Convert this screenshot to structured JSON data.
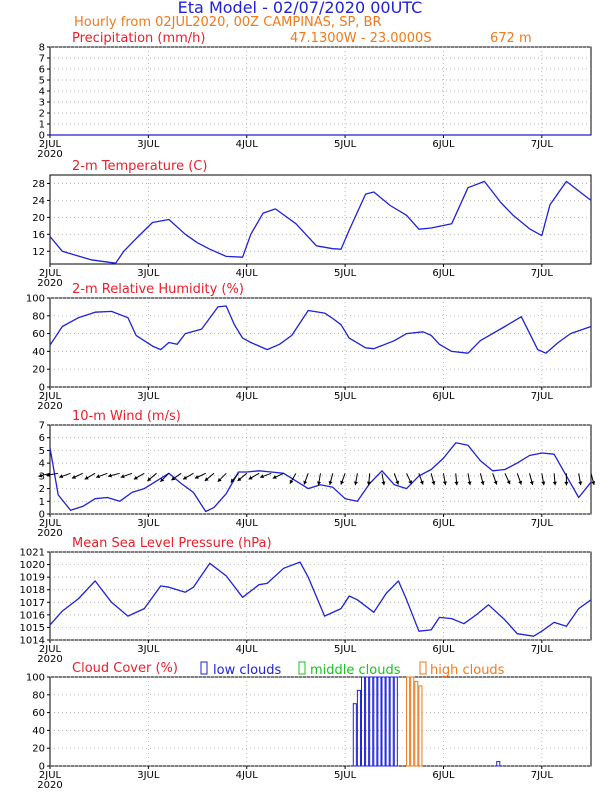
{
  "header": {
    "title": "Eta Model - 02/07/2020 00UTC",
    "subtitle": "Hourly from 02JUL2020, 00Z  CAMPINAS, SP, BR",
    "coords": "47.1300W - 23.0000S",
    "elevation": "672  m"
  },
  "time_axis": {
    "day_labels": [
      "2JUL",
      "3JUL",
      "4JUL",
      "5JUL",
      "6JUL",
      "7JUL"
    ],
    "year_label": "2020"
  },
  "colors": {
    "series": "#1f22d8",
    "panel_title": "#e8212a",
    "header": "#f07a1a",
    "low_clouds": "#1f22d8",
    "middle_clouds": "#18c41e",
    "high_clouds": "#f07a1a",
    "wind_barb": "#000000"
  },
  "chart_data": [
    {
      "id": "precip",
      "type": "line",
      "title": "Precipitation (mm/h)",
      "ylim": [
        0,
        8
      ],
      "yticks": [
        0,
        1,
        2,
        3,
        4,
        5,
        6,
        7,
        8
      ],
      "x": [
        0,
        132
      ],
      "values": [
        0,
        0
      ]
    },
    {
      "id": "temp",
      "type": "line",
      "title": "2-m Temperature (C)",
      "ylim": [
        9,
        30
      ],
      "yticks": [
        12,
        16,
        20,
        24,
        28
      ],
      "x": [
        0,
        3,
        10,
        16,
        18,
        21,
        25,
        29,
        33,
        36,
        39,
        43,
        47,
        49,
        52,
        55,
        60,
        65,
        69,
        71,
        73,
        77,
        79,
        83,
        87,
        90,
        93,
        98,
        102,
        106,
        110,
        113,
        117,
        120,
        122,
        126,
        130,
        132
      ],
      "values": [
        15.5,
        12,
        10,
        9.2,
        12,
        15,
        18.8,
        19.5,
        16,
        14,
        12.5,
        10.8,
        10.6,
        16,
        21,
        22,
        18.5,
        13.3,
        12.6,
        12.5,
        17,
        25.5,
        26,
        22.8,
        20.5,
        17.2,
        17.5,
        18.5,
        27,
        28.5,
        23.5,
        20.5,
        17.3,
        15.7,
        23,
        28.5,
        25.5,
        24
      ]
    },
    {
      "id": "rh",
      "type": "line",
      "title": "2-m Relative Humidity (%)",
      "ylim": [
        0,
        100
      ],
      "yticks": [
        0,
        20,
        40,
        60,
        80,
        100
      ],
      "x": [
        0,
        3,
        7,
        11,
        15,
        19,
        21,
        25,
        27,
        29,
        31,
        33,
        37,
        41,
        43,
        45,
        47,
        49,
        53,
        56,
        59,
        63,
        67,
        69,
        71,
        73,
        77,
        79,
        84,
        87,
        91,
        93,
        95,
        98,
        102,
        105,
        108,
        111,
        115,
        119,
        121,
        124,
        127,
        132
      ],
      "values": [
        47,
        68,
        78,
        84,
        85,
        78,
        58,
        46,
        42,
        50,
        48,
        60,
        65,
        90,
        91,
        70,
        55,
        50,
        42,
        48,
        58,
        86,
        83,
        77,
        70,
        55,
        44,
        43,
        52,
        60,
        62,
        58,
        48,
        40,
        38,
        52,
        60,
        68,
        79,
        42,
        38,
        50,
        60,
        68
      ]
    },
    {
      "id": "wind",
      "type": "line",
      "title": "10-m Wind (m/s)",
      "ylim": [
        0,
        7
      ],
      "yticks": [
        0,
        1,
        2,
        3,
        4,
        5,
        6,
        7
      ],
      "x": [
        0,
        2,
        5,
        8,
        11,
        14,
        17,
        20,
        23,
        26,
        29,
        32,
        35,
        38,
        40,
        43,
        46,
        48,
        51,
        54,
        57,
        60,
        63,
        66,
        69,
        72,
        75,
        78,
        81,
        84,
        87,
        90,
        93,
        96,
        99,
        102,
        105,
        108,
        111,
        114,
        117,
        120,
        123,
        126,
        129,
        132
      ],
      "values": [
        5.2,
        1.5,
        0.3,
        0.6,
        1.2,
        1.3,
        1.0,
        1.7,
        2.0,
        2.6,
        3.2,
        2.4,
        1.7,
        0.2,
        0.5,
        1.6,
        3.3,
        3.3,
        3.4,
        3.3,
        3.2,
        2.6,
        2.0,
        2.3,
        2.1,
        1.2,
        1.0,
        2.4,
        3.4,
        2.3,
        2.0,
        3.0,
        3.5,
        4.4,
        5.6,
        5.4,
        4.2,
        3.4,
        3.5,
        4.0,
        4.6,
        4.8,
        4.7,
        3.0,
        1.3,
        2.5
      ],
      "barb_directions_deg": [
        285,
        280,
        290,
        295,
        300,
        290,
        285,
        290,
        300,
        310,
        315,
        305,
        300,
        295,
        310,
        315,
        320,
        310,
        300,
        290,
        295,
        330,
        340,
        350,
        345,
        340,
        350,
        355,
        10,
        20,
        25,
        20,
        15,
        10,
        5,
        10,
        15,
        20,
        25,
        20,
        15,
        10,
        5,
        0,
        10,
        15
      ]
    },
    {
      "id": "mslp",
      "type": "line",
      "title": "Mean Sea Level Pressure (hPa)",
      "ylim": [
        1014,
        1021
      ],
      "yticks": [
        1014,
        1015,
        1016,
        1017,
        1018,
        1019,
        1020,
        1021
      ],
      "x": [
        0,
        3,
        7,
        11,
        15,
        19,
        23,
        27,
        29,
        33,
        35,
        39,
        43,
        47,
        51,
        53,
        57,
        61,
        63,
        67,
        71,
        73,
        75,
        79,
        82,
        85,
        87,
        90,
        93,
        95,
        98,
        101,
        104,
        107,
        111,
        114,
        118,
        120,
        123,
        126,
        129,
        132
      ],
      "values": [
        1015.2,
        1016.3,
        1017.3,
        1018.7,
        1017.0,
        1015.9,
        1016.5,
        1018.3,
        1018.2,
        1017.8,
        1018.2,
        1020.1,
        1019.1,
        1017.4,
        1018.4,
        1018.5,
        1019.7,
        1020.2,
        1019.0,
        1015.9,
        1016.5,
        1017.5,
        1017.2,
        1016.2,
        1017.7,
        1018.7,
        1017.2,
        1014.7,
        1014.8,
        1015.8,
        1015.7,
        1015.3,
        1016.0,
        1016.8,
        1015.6,
        1014.5,
        1014.3,
        1014.7,
        1015.4,
        1015.1,
        1016.5,
        1017.2
      ]
    },
    {
      "id": "clouds",
      "type": "bar",
      "title": "Cloud Cover (%)",
      "legend": [
        "low clouds",
        "middle clouds",
        "high clouds"
      ],
      "ylim": [
        0,
        100
      ],
      "yticks": [
        0,
        20,
        40,
        60,
        80,
        100
      ],
      "series": [
        {
          "name": "low clouds",
          "x": [
            74,
            75,
            76,
            77,
            78,
            79,
            80,
            81,
            82,
            83,
            84,
            109
          ],
          "values": [
            70,
            85,
            100,
            100,
            100,
            100,
            100,
            100,
            100,
            100,
            100,
            5
          ]
        },
        {
          "name": "middle clouds",
          "x": [],
          "values": []
        },
        {
          "name": "high clouds",
          "x": [
            87,
            88,
            89,
            90
          ],
          "values": [
            100,
            100,
            95,
            90
          ]
        }
      ]
    }
  ]
}
